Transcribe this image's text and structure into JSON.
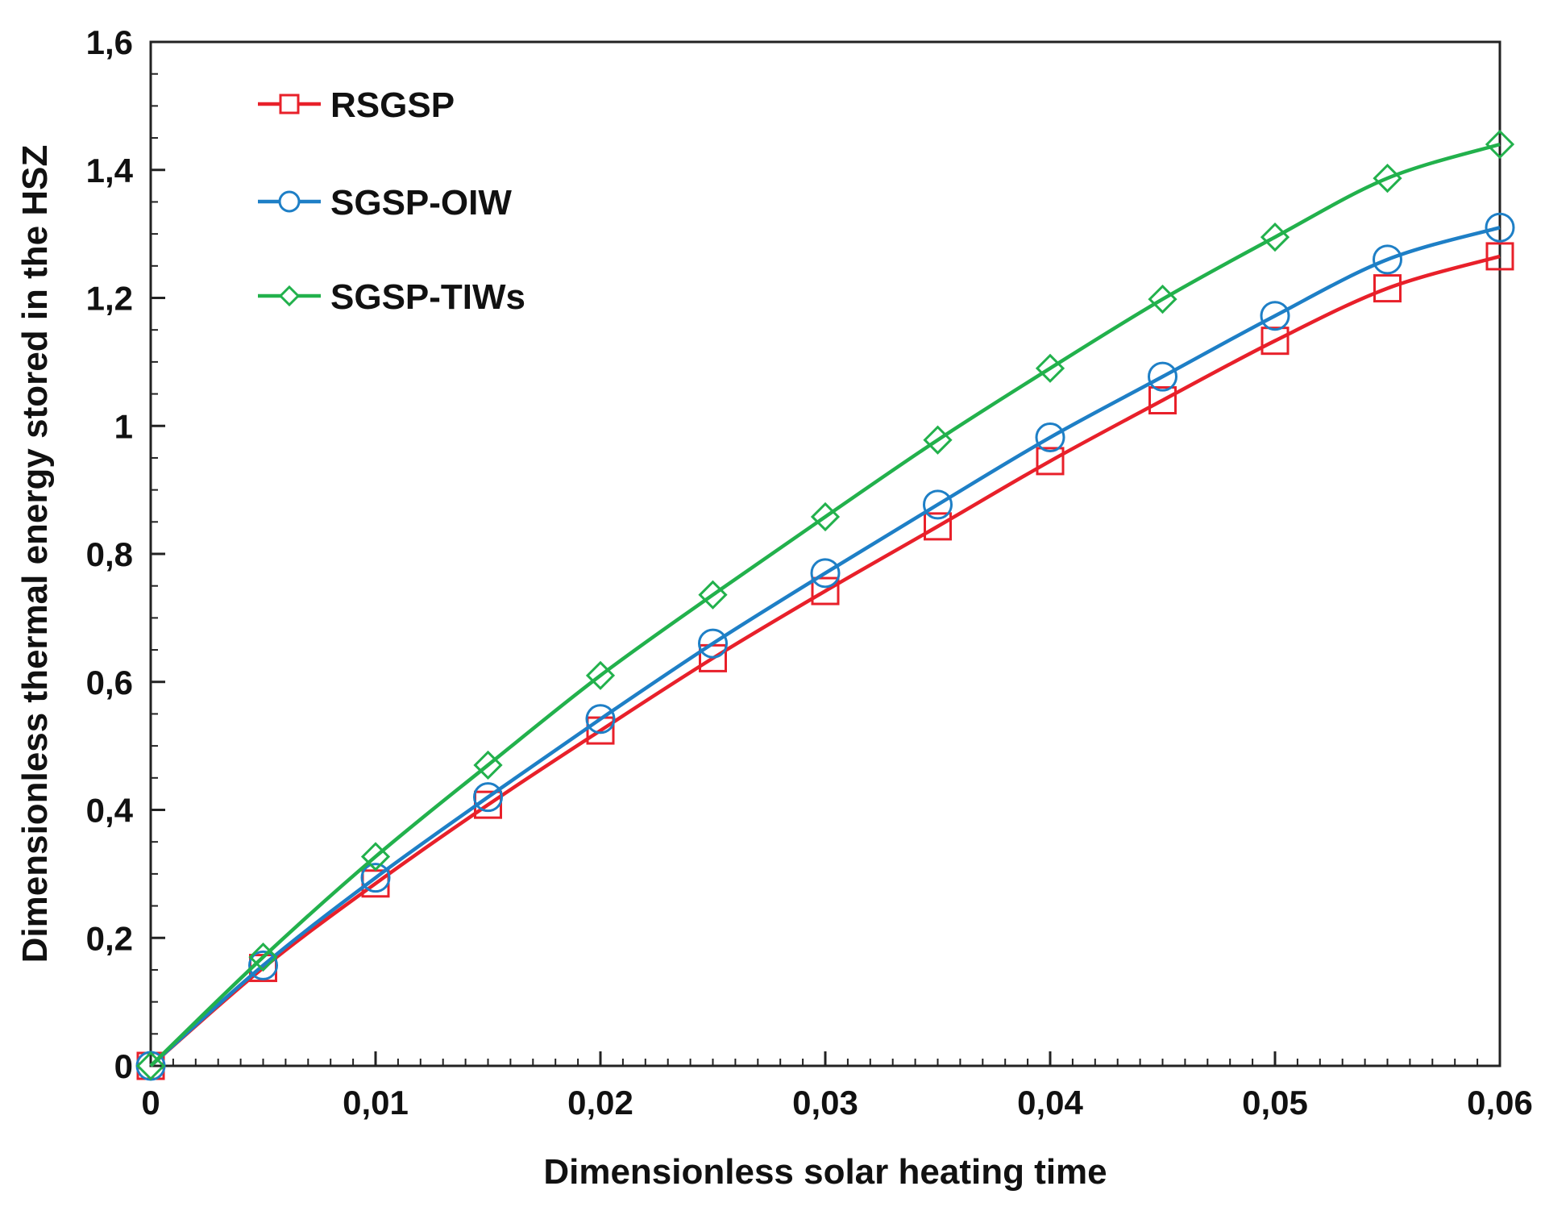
{
  "chart_data": {
    "type": "line",
    "title": "",
    "xlabel": "Dimensionless solar heating time",
    "ylabel": "Dimensionless thermal energy stored in the HSZ",
    "xlim": [
      0,
      0.06
    ],
    "ylim": [
      0,
      1.6
    ],
    "xticks": [
      0,
      0.01,
      0.02,
      0.03,
      0.04,
      0.05,
      0.06
    ],
    "xtick_labels": [
      "0",
      "0,01",
      "0,02",
      "0,03",
      "0,04",
      "0,05",
      "0,06"
    ],
    "yticks": [
      0,
      0.2,
      0.4,
      0.6,
      0.8,
      1.0,
      1.2,
      1.4,
      1.6
    ],
    "ytick_labels": [
      "0",
      "0,2",
      "0,4",
      "0,6",
      "0,8",
      "1",
      "1,2",
      "1,4",
      "1,6"
    ],
    "x": [
      0,
      0.005,
      0.01,
      0.015,
      0.02,
      0.025,
      0.03,
      0.035,
      0.04,
      0.045,
      0.05,
      0.055,
      0.06
    ],
    "legend_position": "top-left",
    "grid": false,
    "series": [
      {
        "name": "RSGSP",
        "color": "#e8202a",
        "marker": "square",
        "values": [
          0,
          0.153,
          0.285,
          0.408,
          0.524,
          0.637,
          0.742,
          0.843,
          0.945,
          1.04,
          1.133,
          1.215,
          1.265
        ]
      },
      {
        "name": "SGSP-OIW",
        "color": "#1e7fc6",
        "marker": "circle",
        "values": [
          0,
          0.157,
          0.294,
          0.42,
          0.542,
          0.66,
          0.77,
          0.877,
          0.982,
          1.077,
          1.172,
          1.26,
          1.31
        ]
      },
      {
        "name": "SGSP-TIWs",
        "color": "#22b14c",
        "marker": "diamond",
        "values": [
          0,
          0.17,
          0.327,
          0.47,
          0.61,
          0.736,
          0.858,
          0.978,
          1.09,
          1.198,
          1.295,
          1.387,
          1.44
        ]
      }
    ]
  }
}
